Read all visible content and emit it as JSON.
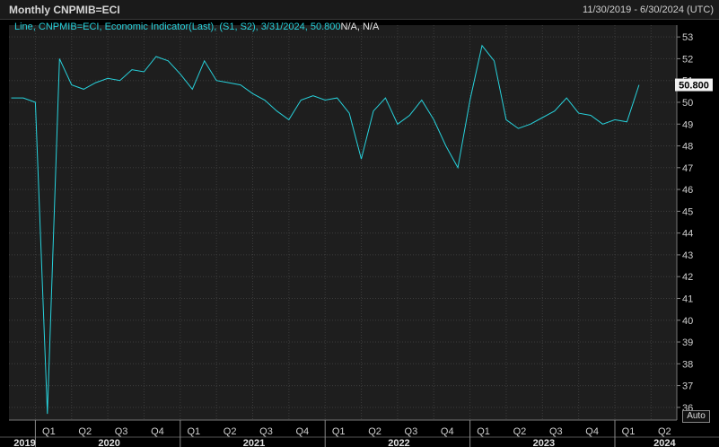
{
  "header": {
    "title": "Monthly CNPMIB=ECI",
    "date_range": "11/30/2019 - 6/30/2024 (UTC)"
  },
  "legend": {
    "text": "Line, CNPMIB=ECI, Economic Indicator(Last), (S1, S2), 3/31/2024, 50.800",
    "tail": "N/A, N/A"
  },
  "auto_button": "Auto",
  "colors": {
    "background": "#000000",
    "plot_background": "#1e1e1e",
    "series": "#27d2dc",
    "grid": "#3c3c3c"
  },
  "chart_data": {
    "type": "line",
    "series": [
      {
        "x": [
          "2019-11",
          "2019-12",
          "2020-01",
          "2020-02",
          "2020-03",
          "2020-04",
          "2020-05",
          "2020-06",
          "2020-07",
          "2020-08",
          "2020-09",
          "2020-10",
          "2020-11",
          "2020-12",
          "2021-01",
          "2021-02",
          "2021-03",
          "2021-04",
          "2021-05",
          "2021-06",
          "2021-07",
          "2021-08",
          "2021-09",
          "2021-10",
          "2021-11",
          "2021-12",
          "2022-01",
          "2022-02",
          "2022-03",
          "2022-04",
          "2022-05",
          "2022-06",
          "2022-07",
          "2022-08",
          "2022-09",
          "2022-10",
          "2022-11",
          "2022-12",
          "2023-01",
          "2023-02",
          "2023-03",
          "2023-04",
          "2023-05",
          "2023-06",
          "2023-07",
          "2023-08",
          "2023-09",
          "2023-10",
          "2023-11",
          "2023-12",
          "2024-01",
          "2024-02",
          "2024-03"
        ],
        "values": [
          50.2,
          50.2,
          50.0,
          35.7,
          52.0,
          50.8,
          50.6,
          50.9,
          51.1,
          51.0,
          51.5,
          51.4,
          52.1,
          51.9,
          51.3,
          50.6,
          51.9,
          51.0,
          50.9,
          50.8,
          50.4,
          50.1,
          49.6,
          49.2,
          50.1,
          50.3,
          50.1,
          50.2,
          49.5,
          47.4,
          49.6,
          50.2,
          49.0,
          49.4,
          50.1,
          49.2,
          48.0,
          47.0,
          50.1,
          52.6,
          51.9,
          49.2,
          48.8,
          49.0,
          49.3,
          49.6,
          50.2,
          49.5,
          49.4,
          49.0,
          49.2,
          49.1,
          50.8
        ]
      }
    ],
    "last_value_label": "50.800",
    "ylim": [
      35.5,
      53.5
    ],
    "yticks": [
      36,
      37,
      38,
      39,
      40,
      41,
      42,
      43,
      44,
      45,
      46,
      47,
      48,
      49,
      50,
      51,
      52,
      53
    ],
    "quarter_ticks": [
      {
        "label": "Q1",
        "date": "2020-01"
      },
      {
        "label": "Q2",
        "date": "2020-04"
      },
      {
        "label": "Q3",
        "date": "2020-07"
      },
      {
        "label": "Q4",
        "date": "2020-10"
      },
      {
        "label": "Q1",
        "date": "2021-01"
      },
      {
        "label": "Q2",
        "date": "2021-04"
      },
      {
        "label": "Q3",
        "date": "2021-07"
      },
      {
        "label": "Q4",
        "date": "2021-10"
      },
      {
        "label": "Q1",
        "date": "2022-01"
      },
      {
        "label": "Q2",
        "date": "2022-04"
      },
      {
        "label": "Q3",
        "date": "2022-07"
      },
      {
        "label": "Q4",
        "date": "2022-10"
      },
      {
        "label": "Q1",
        "date": "2023-01"
      },
      {
        "label": "Q2",
        "date": "2023-04"
      },
      {
        "label": "Q3",
        "date": "2023-07"
      },
      {
        "label": "Q4",
        "date": "2023-10"
      },
      {
        "label": "Q1",
        "date": "2024-01"
      },
      {
        "label": "Q2",
        "date": "2024-04"
      }
    ],
    "year_labels": [
      {
        "label": "2019",
        "date": "2019-11"
      },
      {
        "label": "2020",
        "date": "2020-06"
      },
      {
        "label": "2021",
        "date": "2021-06"
      },
      {
        "label": "2022",
        "date": "2022-06"
      },
      {
        "label": "2023",
        "date": "2023-06"
      },
      {
        "label": "2024",
        "date": "2024-04"
      }
    ],
    "year_boundaries": [
      "2020-01",
      "2021-01",
      "2022-01",
      "2023-01",
      "2024-01"
    ],
    "grid": true
  }
}
